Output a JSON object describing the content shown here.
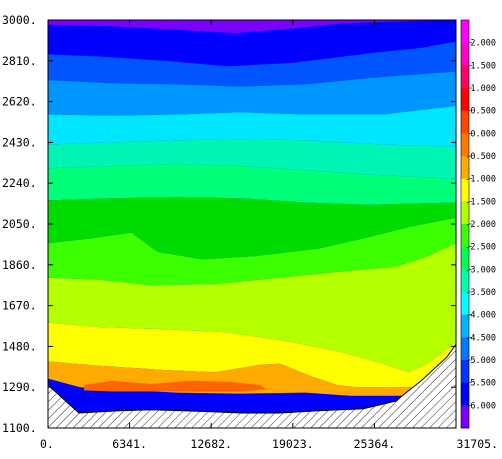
{
  "chart_data": {
    "type": "contour",
    "title": "",
    "xlabel": "",
    "ylabel": "",
    "xlim": [
      0,
      31705
    ],
    "ylim": [
      1100,
      3000
    ],
    "x_ticks": [
      0,
      6341,
      12682,
      19023,
      25364,
      31705
    ],
    "x_tick_labels": [
      "0.",
      "6341.",
      "12682.",
      "19023.",
      "25364.",
      "31705."
    ],
    "y_ticks": [
      1100,
      1290,
      1480,
      1670,
      1860,
      2050,
      2240,
      2430,
      2620,
      2810,
      3000
    ],
    "y_tick_labels": [
      "1100.",
      "1290.",
      "1480.",
      "1670.",
      "1860.",
      "2050.",
      "2240.",
      "2430.",
      "2620.",
      "2810.",
      "3000."
    ],
    "colorbar": {
      "levels": [
        2.0,
        1.5,
        1.0,
        0.5,
        0.0,
        -0.5,
        -1.0,
        -1.5,
        -2.0,
        -2.5,
        -3.0,
        -3.5,
        -4.0,
        -4.5,
        -5.0,
        -5.5,
        -6.0
      ],
      "labels": [
        "2.000",
        "1.500",
        "1.000",
        "0.500",
        "0.000",
        "-0.500",
        "-1.000",
        "-1.500",
        "-2.000",
        "-2.500",
        "-3.000",
        "-3.500",
        "-4.000",
        "-4.500",
        "-5.000",
        "-5.500",
        "-6.000"
      ],
      "colors": [
        "#ff00ff",
        "#ff00c8",
        "#ff0064",
        "#ff0000",
        "#ff4600",
        "#ff7800",
        "#ffaa00",
        "#ffff00",
        "#b4ff00",
        "#3cff00",
        "#00ff50",
        "#00ffaa",
        "#00ffff",
        "#00b4ff",
        "#0078ff",
        "#0037ff",
        "#0000ff",
        "#7800ff"
      ]
    },
    "bands": [
      {
        "color": "#7a00ff",
        "top": [
          [
            0,
            3000
          ],
          [
            31705,
            3000
          ]
        ],
        "bottom": [
          [
            0,
            2978
          ],
          [
            5000,
            2970
          ],
          [
            10000,
            2955
          ],
          [
            14500,
            2938
          ],
          [
            19000,
            2960
          ],
          [
            23000,
            2985
          ],
          [
            31705,
            3000
          ]
        ]
      },
      {
        "color": "#0000ff",
        "top": [
          [
            0,
            2978
          ],
          [
            5000,
            2970
          ],
          [
            10000,
            2955
          ],
          [
            14500,
            2938
          ],
          [
            19000,
            2960
          ],
          [
            23000,
            2985
          ],
          [
            31705,
            3000
          ]
        ],
        "bottom": [
          [
            0,
            2840
          ],
          [
            4000,
            2830
          ],
          [
            9000,
            2810
          ],
          [
            14000,
            2785
          ],
          [
            19000,
            2800
          ],
          [
            25000,
            2845
          ],
          [
            29000,
            2870
          ],
          [
            31705,
            2900
          ]
        ]
      },
      {
        "color": "#0055ff",
        "top": [
          [
            0,
            2840
          ],
          [
            4000,
            2830
          ],
          [
            9000,
            2810
          ],
          [
            14000,
            2785
          ],
          [
            19000,
            2800
          ],
          [
            25000,
            2845
          ],
          [
            29000,
            2870
          ],
          [
            31705,
            2900
          ]
        ],
        "bottom": [
          [
            0,
            2720
          ],
          [
            5000,
            2705
          ],
          [
            10000,
            2700
          ],
          [
            15000,
            2690
          ],
          [
            20000,
            2700
          ],
          [
            25000,
            2730
          ],
          [
            31705,
            2760
          ]
        ]
      },
      {
        "color": "#0096ff",
        "top": [
          [
            0,
            2720
          ],
          [
            5000,
            2705
          ],
          [
            10000,
            2700
          ],
          [
            15000,
            2690
          ],
          [
            20000,
            2700
          ],
          [
            25000,
            2730
          ],
          [
            31705,
            2760
          ]
        ],
        "bottom": [
          [
            0,
            2560
          ],
          [
            5000,
            2555
          ],
          [
            10000,
            2560
          ],
          [
            15000,
            2570
          ],
          [
            20000,
            2560
          ],
          [
            26000,
            2560
          ],
          [
            31705,
            2600
          ]
        ]
      },
      {
        "color": "#00e6ff",
        "top": [
          [
            0,
            2560
          ],
          [
            5000,
            2555
          ],
          [
            10000,
            2560
          ],
          [
            15000,
            2570
          ],
          [
            20000,
            2560
          ],
          [
            26000,
            2560
          ],
          [
            31705,
            2600
          ]
        ],
        "bottom": [
          [
            0,
            2420
          ],
          [
            5000,
            2430
          ],
          [
            10000,
            2440
          ],
          [
            15000,
            2445
          ],
          [
            20000,
            2440
          ],
          [
            26000,
            2420
          ],
          [
            31705,
            2410
          ]
        ]
      },
      {
        "color": "#00f5b4",
        "top": [
          [
            0,
            2420
          ],
          [
            5000,
            2430
          ],
          [
            10000,
            2440
          ],
          [
            15000,
            2445
          ],
          [
            20000,
            2440
          ],
          [
            26000,
            2420
          ],
          [
            31705,
            2410
          ]
        ],
        "bottom": [
          [
            0,
            2310
          ],
          [
            5000,
            2320
          ],
          [
            10000,
            2330
          ],
          [
            15000,
            2320
          ],
          [
            20000,
            2300
          ],
          [
            25000,
            2280
          ],
          [
            31705,
            2260
          ]
        ]
      },
      {
        "color": "#00ff78",
        "top": [
          [
            0,
            2310
          ],
          [
            5000,
            2320
          ],
          [
            10000,
            2330
          ],
          [
            15000,
            2320
          ],
          [
            20000,
            2300
          ],
          [
            25000,
            2280
          ],
          [
            31705,
            2260
          ]
        ],
        "bottom": [
          [
            0,
            2160
          ],
          [
            5000,
            2170
          ],
          [
            10000,
            2175
          ],
          [
            15000,
            2170
          ],
          [
            20000,
            2150
          ],
          [
            25000,
            2140
          ],
          [
            31705,
            2150
          ]
        ]
      },
      {
        "color": "#00dc00",
        "top": [
          [
            0,
            2160
          ],
          [
            5000,
            2170
          ],
          [
            10000,
            2175
          ],
          [
            15000,
            2170
          ],
          [
            20000,
            2150
          ],
          [
            25000,
            2140
          ],
          [
            31705,
            2150
          ]
        ],
        "bottom": [
          [
            0,
            1960
          ],
          [
            3000,
            1980
          ],
          [
            6500,
            2010
          ],
          [
            8500,
            1920
          ],
          [
            12000,
            1885
          ],
          [
            16000,
            1900
          ],
          [
            21000,
            1935
          ],
          [
            25000,
            1990
          ],
          [
            28000,
            2035
          ],
          [
            31705,
            2080
          ]
        ]
      },
      {
        "color": "#3cff00",
        "top": [
          [
            0,
            1960
          ],
          [
            3000,
            1980
          ],
          [
            6500,
            2010
          ],
          [
            8500,
            1920
          ],
          [
            12000,
            1885
          ],
          [
            16000,
            1900
          ],
          [
            21000,
            1935
          ],
          [
            25000,
            1990
          ],
          [
            28000,
            2035
          ],
          [
            31705,
            2080
          ]
        ],
        "bottom": [
          [
            0,
            1800
          ],
          [
            4000,
            1790
          ],
          [
            8000,
            1765
          ],
          [
            13000,
            1770
          ],
          [
            18000,
            1800
          ],
          [
            23000,
            1830
          ],
          [
            27000,
            1850
          ],
          [
            29500,
            1900
          ],
          [
            31705,
            1960
          ]
        ]
      },
      {
        "color": "#b4ff00",
        "top": [
          [
            0,
            1800
          ],
          [
            4000,
            1790
          ],
          [
            8000,
            1765
          ],
          [
            13000,
            1770
          ],
          [
            18000,
            1800
          ],
          [
            23000,
            1830
          ],
          [
            27000,
            1850
          ],
          [
            29500,
            1900
          ],
          [
            31705,
            1960
          ]
        ],
        "bottom": [
          [
            0,
            1590
          ],
          [
            4000,
            1570
          ],
          [
            9000,
            1560
          ],
          [
            14000,
            1545
          ],
          [
            19000,
            1500
          ],
          [
            23000,
            1450
          ],
          [
            26000,
            1400
          ],
          [
            28000,
            1360
          ],
          [
            29500,
            1400
          ],
          [
            31705,
            1500
          ]
        ]
      },
      {
        "color": "#ffff00",
        "top": [
          [
            0,
            1590
          ],
          [
            4000,
            1570
          ],
          [
            9000,
            1560
          ],
          [
            14000,
            1545
          ],
          [
            19000,
            1500
          ],
          [
            23000,
            1450
          ],
          [
            26000,
            1400
          ],
          [
            28000,
            1360
          ],
          [
            29500,
            1400
          ],
          [
            31705,
            1500
          ]
        ],
        "bottom": [
          [
            0,
            1410
          ],
          [
            4000,
            1390
          ],
          [
            9000,
            1370
          ],
          [
            13000,
            1360
          ],
          [
            16500,
            1395
          ],
          [
            18000,
            1400
          ],
          [
            20500,
            1340
          ],
          [
            22500,
            1300
          ],
          [
            24000,
            1290
          ],
          [
            31705,
            1290
          ]
        ]
      },
      {
        "color": "#ffaa00",
        "top": [
          [
            0,
            1410
          ],
          [
            4000,
            1390
          ],
          [
            9000,
            1370
          ],
          [
            13000,
            1360
          ],
          [
            16500,
            1395
          ],
          [
            18000,
            1400
          ],
          [
            20500,
            1340
          ],
          [
            22500,
            1300
          ],
          [
            24000,
            1290
          ],
          [
            31705,
            1290
          ]
        ],
        "bottom": [
          [
            0,
            1330
          ],
          [
            2500,
            1290
          ],
          [
            5000,
            1280
          ],
          [
            10000,
            1265
          ],
          [
            15000,
            1260
          ],
          [
            20000,
            1265
          ],
          [
            23500,
            1250
          ],
          [
            31705,
            1250
          ]
        ]
      },
      {
        "color": "#ff6400",
        "top": [
          [
            2800,
            1300
          ],
          [
            5000,
            1320
          ],
          [
            8000,
            1305
          ],
          [
            11000,
            1320
          ],
          [
            14000,
            1315
          ],
          [
            16500,
            1300
          ],
          [
            17000,
            1280
          ],
          [
            15000,
            1270
          ],
          [
            10000,
            1270
          ],
          [
            5000,
            1270
          ],
          [
            2800,
            1275
          ]
        ],
        "bottom": []
      }
    ],
    "topography": [
      [
        0,
        1300
      ],
      [
        2400,
        1170
      ],
      [
        5500,
        1180
      ],
      [
        8000,
        1185
      ],
      [
        10500,
        1180
      ],
      [
        13000,
        1175
      ],
      [
        15000,
        1170
      ],
      [
        18000,
        1170
      ],
      [
        21000,
        1180
      ],
      [
        24500,
        1190
      ],
      [
        27000,
        1225
      ],
      [
        29000,
        1320
      ],
      [
        31000,
        1430
      ],
      [
        31705,
        1490
      ]
    ]
  }
}
